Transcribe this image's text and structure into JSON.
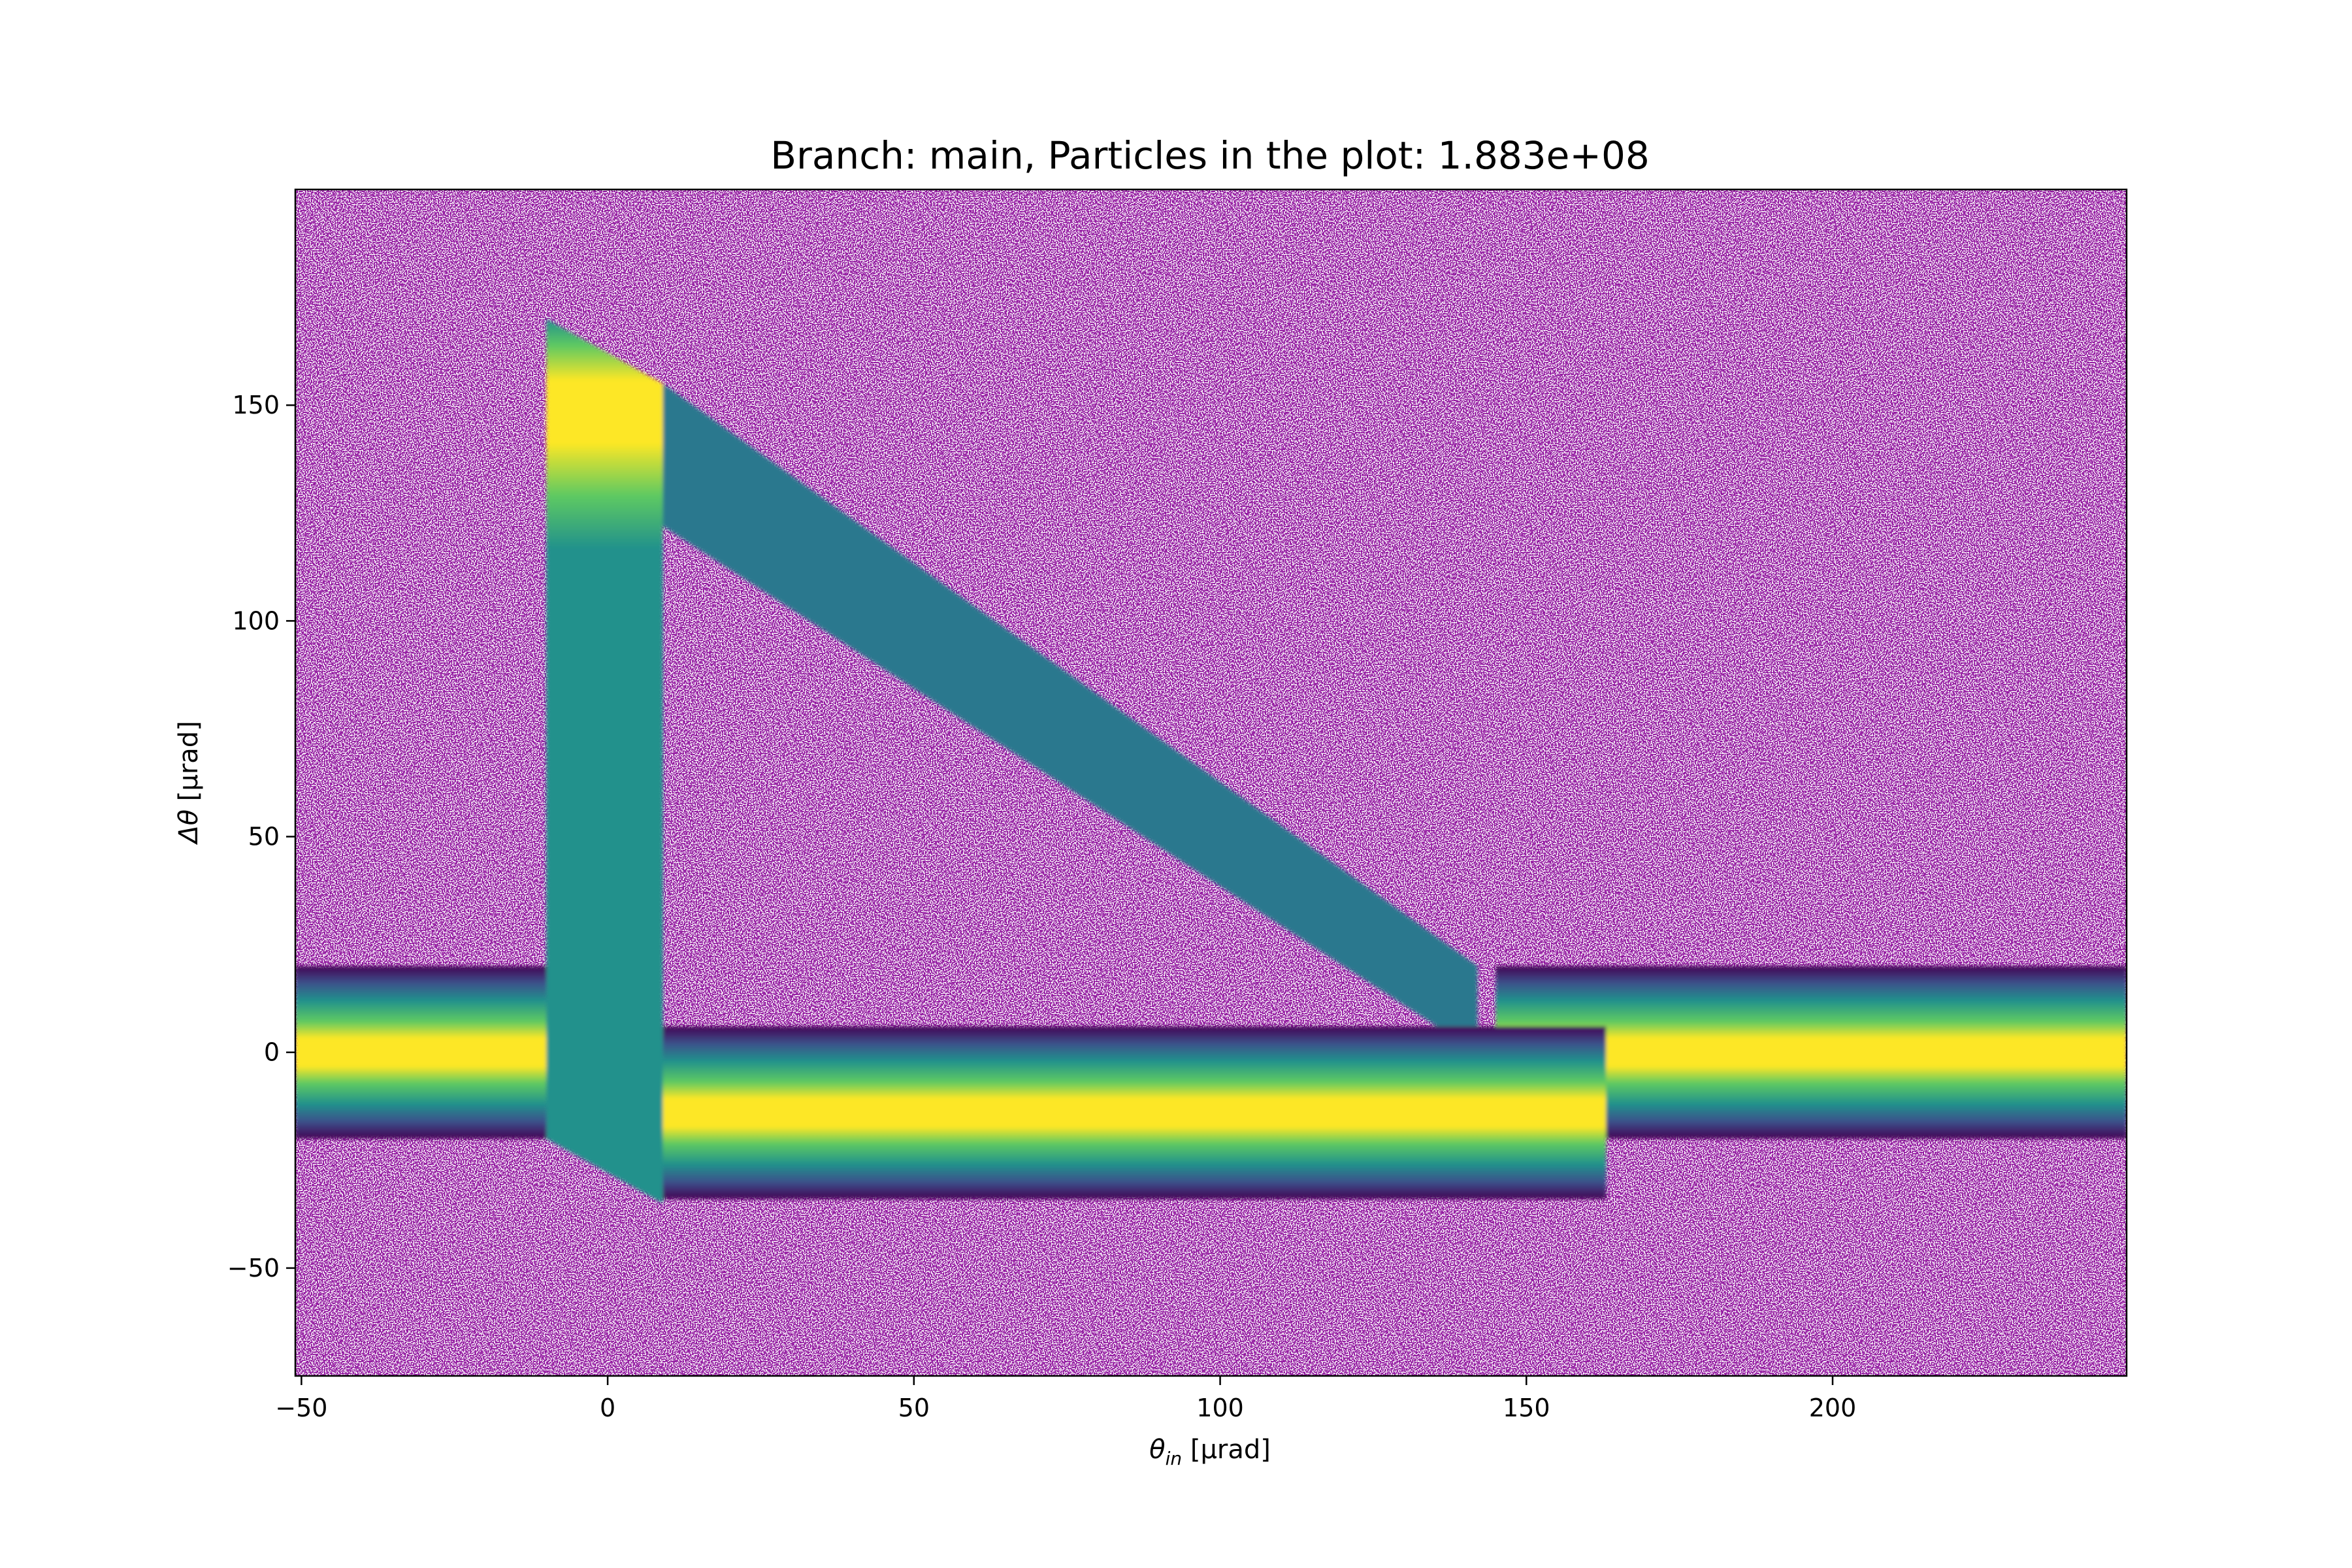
{
  "chart_data": {
    "type": "heatmap",
    "title": "Branch: main,    Particles in the plot: 1.883e+08",
    "xlabel_main": "θ",
    "xlabel_sub": "in",
    "xlabel_unit": " [μrad]",
    "ylabel_main": "Δθ",
    "ylabel_unit": " [μrad]",
    "xlim": [
      -51,
      248
    ],
    "ylim": [
      -75,
      200
    ],
    "xticks": [
      -50,
      0,
      50,
      100,
      150,
      200
    ],
    "xtick_labels": [
      "−50",
      "0",
      "50",
      "100",
      "150",
      "200"
    ],
    "yticks": [
      -50,
      0,
      50,
      100,
      150
    ],
    "ytick_labels": [
      "−50",
      "0",
      "50",
      "100",
      "150"
    ],
    "colormap": "viridis",
    "underflow_color": "#ffffff",
    "regions": {
      "unchanneled_band_left": {
        "x": [
          -51,
          -10
        ],
        "y_center": 0,
        "half_width": 20
      },
      "channeled_column": {
        "x": [
          -10,
          9
        ],
        "y": [
          -20,
          170
        ],
        "peak_y": 145
      },
      "dechanneling_diagonal": {
        "x": [
          9,
          142
        ],
        "y_start": [
          122,
          155
        ],
        "y_end": [
          0,
          20
        ]
      },
      "volume_reflection_band": {
        "x": [
          9,
          163
        ],
        "y_center": -14,
        "half_width": 20
      },
      "unchanneled_band_right": {
        "x": [
          145,
          248
        ],
        "y_center": 0,
        "half_width": 20
      }
    }
  }
}
